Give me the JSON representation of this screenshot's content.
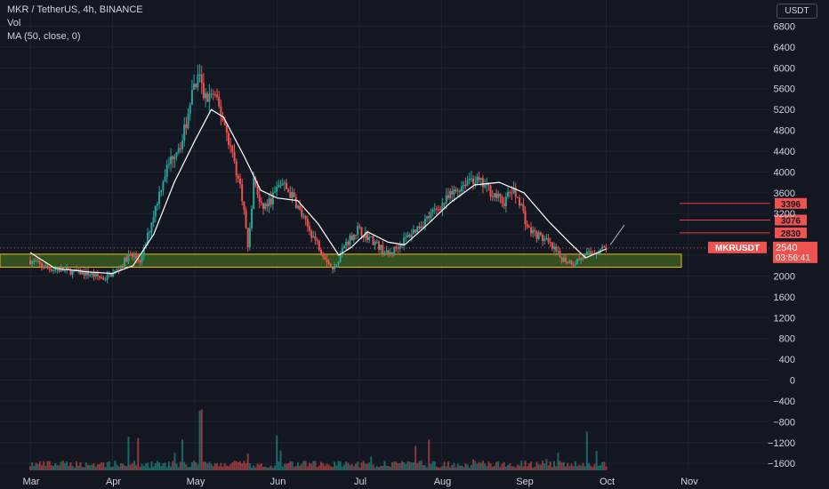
{
  "header": {
    "title": "MKR / TetherUS, 4h, BINANCE",
    "indicator_1": "Vol",
    "indicator_2": "MA (50, close, 0)",
    "unit": "USDT"
  },
  "price_tag": {
    "symbol": "MKRUSDT",
    "price": "2540",
    "countdown": "03:56:41"
  },
  "colors": {
    "background": "#131722",
    "up": "#26a69a",
    "down": "#ef5350",
    "ma": "#ffffff",
    "zone_fill": "#3c5a1e",
    "zone_border": "#f0b90b",
    "level_line": "#f23645"
  },
  "chart_data": {
    "type": "candlestick",
    "interval": "4h",
    "x_ticks": [
      "Mar",
      "Apr",
      "May",
      "Jun",
      "Jul",
      "Aug",
      "Sep",
      "Oct",
      "Nov"
    ],
    "y_ticks": [
      6800,
      6400,
      6000,
      5600,
      5200,
      4800,
      4400,
      4000,
      3600,
      3200,
      2800,
      2400,
      2000,
      1600,
      1200,
      800,
      400,
      0,
      -400,
      -800,
      -1200,
      -1600
    ],
    "ylim": [
      -1750,
      7150
    ],
    "price_path": [
      {
        "month": 0.0,
        "price": 2300
      },
      {
        "month": 0.2,
        "price": 2150
      },
      {
        "month": 0.45,
        "price": 2100
      },
      {
        "month": 0.7,
        "price": 2050
      },
      {
        "month": 0.9,
        "price": 1950
      },
      {
        "month": 1.05,
        "price": 2100
      },
      {
        "month": 1.2,
        "price": 2400
      },
      {
        "month": 1.35,
        "price": 2300
      },
      {
        "month": 1.5,
        "price": 3200
      },
      {
        "month": 1.62,
        "price": 3900
      },
      {
        "month": 1.75,
        "price": 4400
      },
      {
        "month": 1.85,
        "price": 4600
      },
      {
        "month": 1.95,
        "price": 5400
      },
      {
        "month": 2.05,
        "price": 5800
      },
      {
        "month": 2.12,
        "price": 5400
      },
      {
        "month": 2.22,
        "price": 5500
      },
      {
        "month": 2.35,
        "price": 5000
      },
      {
        "month": 2.48,
        "price": 4200
      },
      {
        "month": 2.58,
        "price": 3500
      },
      {
        "month": 2.65,
        "price": 2500
      },
      {
        "month": 2.72,
        "price": 3900
      },
      {
        "month": 2.8,
        "price": 3300
      },
      {
        "month": 2.9,
        "price": 3400
      },
      {
        "month": 3.05,
        "price": 3800
      },
      {
        "month": 3.2,
        "price": 3500
      },
      {
        "month": 3.35,
        "price": 3000
      },
      {
        "month": 3.5,
        "price": 2600
      },
      {
        "month": 3.68,
        "price": 2100
      },
      {
        "month": 3.82,
        "price": 2600
      },
      {
        "month": 3.98,
        "price": 2900
      },
      {
        "month": 4.15,
        "price": 2700
      },
      {
        "month": 4.35,
        "price": 2400
      },
      {
        "month": 4.55,
        "price": 2700
      },
      {
        "month": 4.75,
        "price": 3000
      },
      {
        "month": 4.95,
        "price": 3300
      },
      {
        "month": 5.15,
        "price": 3600
      },
      {
        "month": 5.35,
        "price": 3900
      },
      {
        "month": 5.55,
        "price": 3700
      },
      {
        "month": 5.75,
        "price": 3400
      },
      {
        "month": 5.85,
        "price": 3650
      },
      {
        "month": 5.95,
        "price": 3450
      },
      {
        "month": 6.05,
        "price": 2900
      },
      {
        "month": 6.25,
        "price": 2700
      },
      {
        "month": 6.45,
        "price": 2350
      },
      {
        "month": 6.6,
        "price": 2250
      },
      {
        "month": 6.75,
        "price": 2400
      },
      {
        "month": 6.9,
        "price": 2500
      },
      {
        "month": 7.0,
        "price": 2540
      }
    ],
    "moving_average": {
      "name": "MA (50, close, 0)",
      "points": [
        {
          "month": 0.0,
          "value": 2450
        },
        {
          "month": 0.3,
          "value": 2150
        },
        {
          "month": 0.7,
          "value": 2080
        },
        {
          "month": 1.0,
          "value": 2050
        },
        {
          "month": 1.25,
          "value": 2200
        },
        {
          "month": 1.5,
          "value": 2800
        },
        {
          "month": 1.75,
          "value": 3800
        },
        {
          "month": 2.0,
          "value": 4600
        },
        {
          "month": 2.2,
          "value": 5200
        },
        {
          "month": 2.35,
          "value": 5050
        },
        {
          "month": 2.6,
          "value": 4300
        },
        {
          "month": 2.8,
          "value": 3650
        },
        {
          "month": 3.0,
          "value": 3500
        },
        {
          "month": 3.25,
          "value": 3450
        },
        {
          "month": 3.5,
          "value": 3000
        },
        {
          "month": 3.75,
          "value": 2400
        },
        {
          "month": 3.9,
          "value": 2550
        },
        {
          "month": 4.1,
          "value": 2850
        },
        {
          "month": 4.35,
          "value": 2650
        },
        {
          "month": 4.55,
          "value": 2600
        },
        {
          "month": 4.8,
          "value": 2950
        },
        {
          "month": 5.1,
          "value": 3400
        },
        {
          "month": 5.4,
          "value": 3750
        },
        {
          "month": 5.7,
          "value": 3800
        },
        {
          "month": 6.0,
          "value": 3600
        },
        {
          "month": 6.3,
          "value": 3050
        },
        {
          "month": 6.55,
          "value": 2650
        },
        {
          "month": 6.75,
          "value": 2350
        },
        {
          "month": 7.0,
          "value": 2520
        }
      ]
    },
    "support_zone": {
      "from": 2170,
      "to": 2420
    },
    "levels": [
      {
        "label": "3396",
        "value": 3396
      },
      {
        "label": "3076",
        "value": 3076
      },
      {
        "label": "2830",
        "value": 2830
      }
    ],
    "current_price": 2540,
    "projection": {
      "from": 2600,
      "to": 2980
    }
  }
}
